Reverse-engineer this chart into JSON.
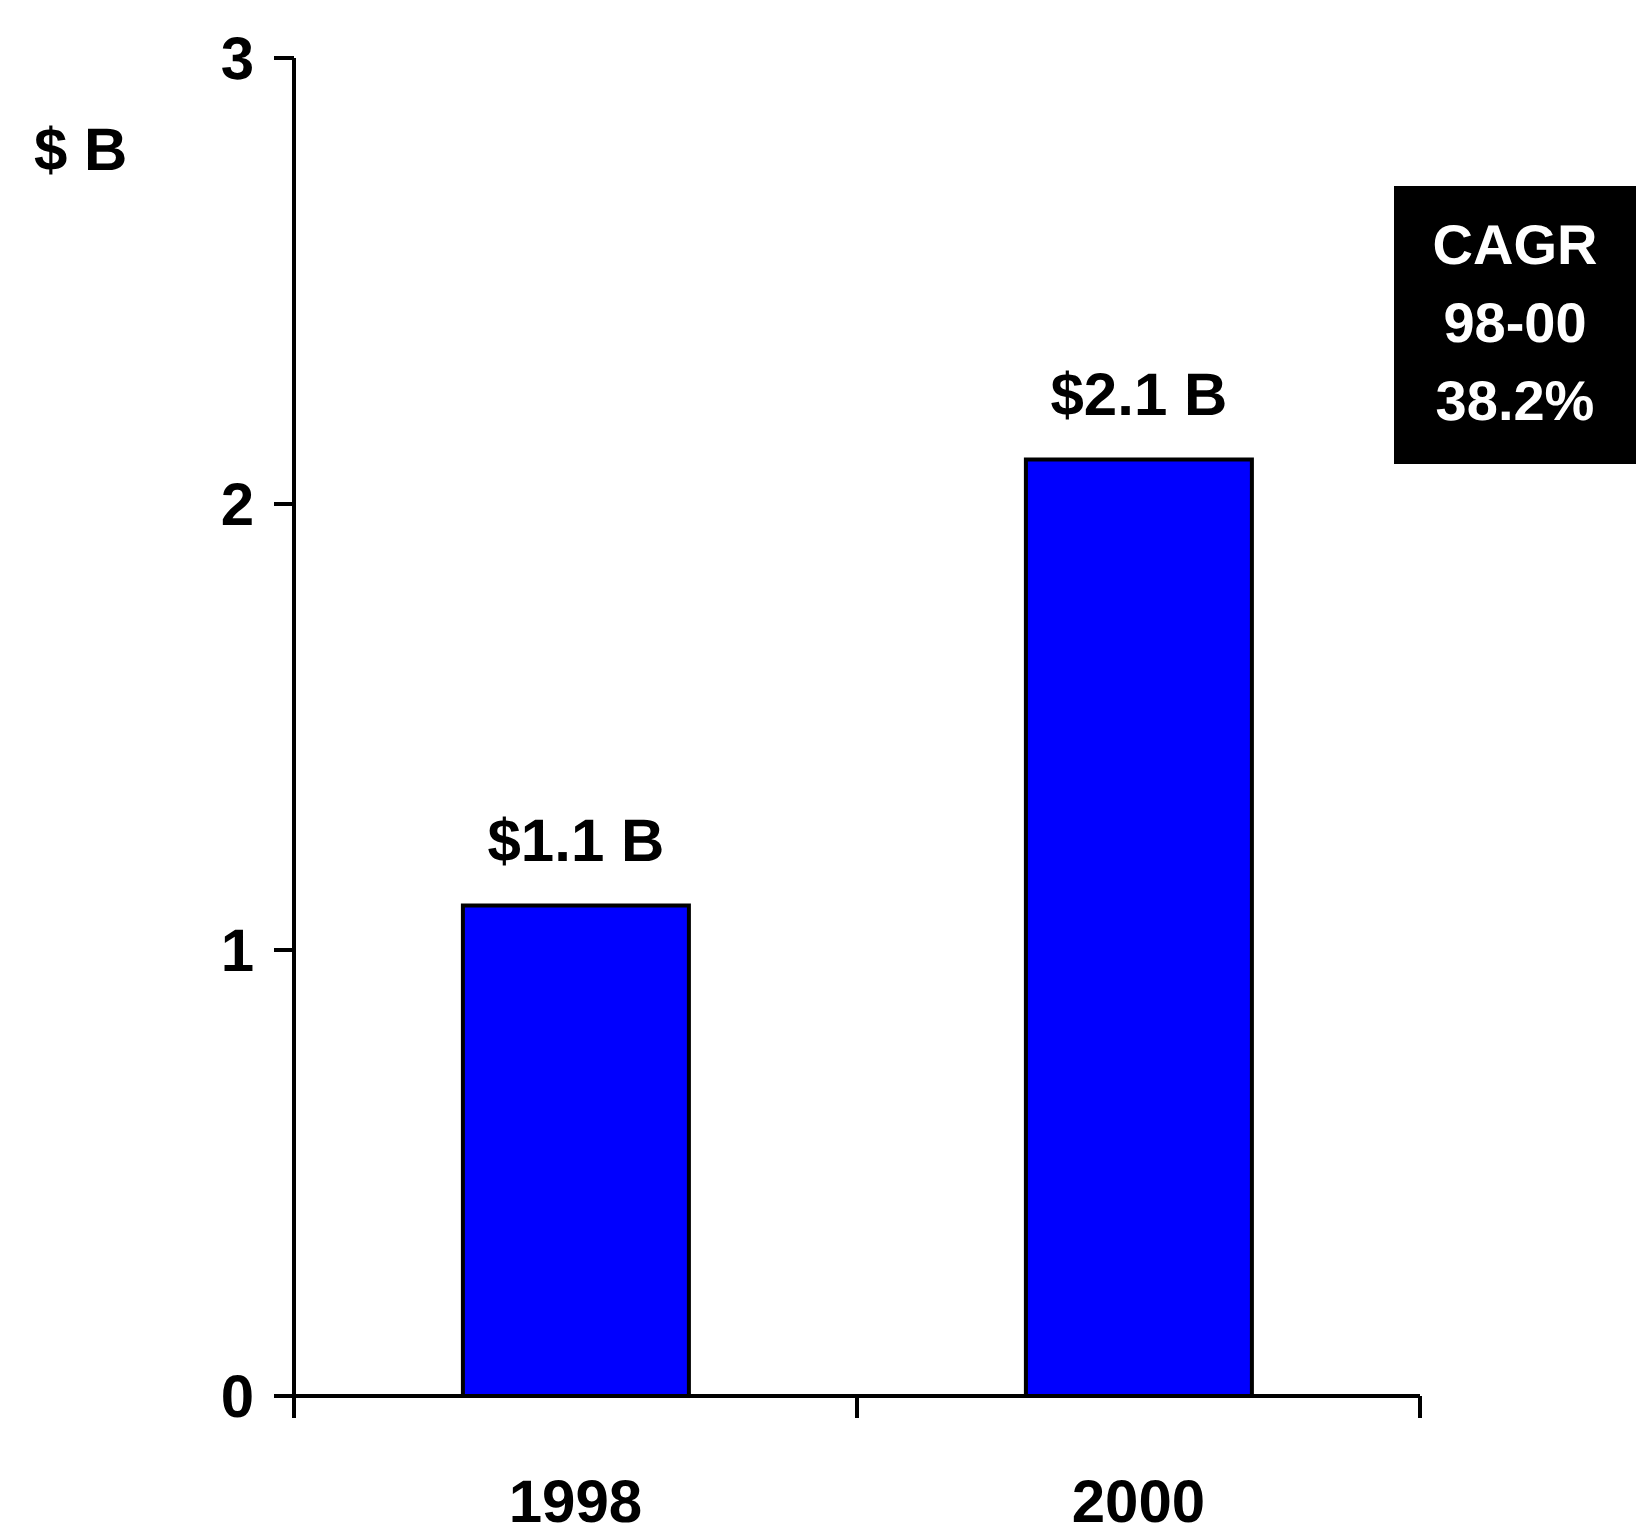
{
  "chart_data": {
    "type": "bar",
    "categories": [
      "1998",
      "2000"
    ],
    "values": [
      1.1,
      2.1
    ],
    "color": "#0000ff",
    "value_labels": [
      "$1.1 B",
      "$2.1 B"
    ],
    "ylabel": "$ B",
    "ylim": [
      0,
      3
    ],
    "yticks": [
      0,
      1,
      2,
      3
    ],
    "annotations": [
      "CAGR\n98-00\n38.2%"
    ]
  }
}
